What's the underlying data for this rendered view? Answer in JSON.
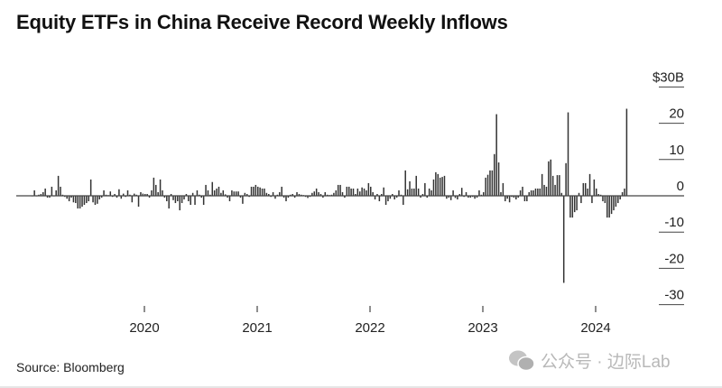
{
  "title": "Equity ETFs in China Receive Record Weekly Inflows",
  "source": "Source: Bloomberg",
  "watermark": "公众号 · 边际Lab",
  "chart_data": {
    "type": "bar",
    "title": "Equity ETFs in China Receive Record Weekly Inflows",
    "frequency": "weekly",
    "start_year": 2019,
    "unit": "$B",
    "ylim": [
      -30,
      30
    ],
    "y_axis_position": "right",
    "y_ticks": [
      30,
      20,
      10,
      0,
      -10,
      -20,
      -30
    ],
    "y_tick_labels": [
      "$30B",
      "20",
      "10",
      "0",
      "-10",
      "-20",
      "-30"
    ],
    "x_tick_labels": [
      "2020",
      "2021",
      "2022",
      "2023",
      "2024"
    ],
    "grid": false,
    "bar_color": "#333333",
    "values": [
      0,
      1.5,
      0,
      0.3,
      0.5,
      1,
      2,
      -0.5,
      -0.5,
      2.5,
      0,
      1.5,
      5.5,
      2.5,
      0.3,
      -0.3,
      -0.8,
      -1.5,
      -0.5,
      -1.8,
      -2,
      -3.5,
      -3.5,
      -3,
      -2.5,
      -2,
      -1.5,
      4.5,
      -1.8,
      -2.5,
      -2.2,
      -1,
      -0.5,
      1.5,
      0.3,
      0.2,
      1.2,
      -0.3,
      0.5,
      -0.5,
      1.8,
      -0.8,
      0.6,
      -0.3,
      1.5,
      0.3,
      -1.8,
      0.6,
      0.3,
      -3,
      1,
      0.6,
      0.5,
      0.5,
      -0.5,
      1.5,
      5,
      3,
      1,
      4.5,
      1.5,
      -0.5,
      -1.5,
      -3.5,
      0.5,
      -1.2,
      -2,
      -1.5,
      -4,
      -2,
      -1,
      0.5,
      -1.5,
      -2.5,
      0.8,
      -2.5,
      1.5,
      0.3,
      -0.5,
      -2.5,
      3,
      1.5,
      0.3,
      3.8,
      1.5,
      2,
      2.5,
      0.8,
      1.5,
      0.4,
      -0.5,
      -1.5,
      1.5,
      1.2,
      1.2,
      1.2,
      -0.5,
      -2.2,
      0.8,
      0.5,
      -0.3,
      2.5,
      2.5,
      3,
      2.5,
      2.3,
      2,
      2,
      0.8,
      0.5,
      -0.3,
      1,
      -0.8,
      0.3,
      1,
      2.5,
      -0.5,
      -1.5,
      -0.5,
      0.3,
      0.5,
      -0.5,
      1,
      0.5,
      0.3,
      0.2,
      -0.3,
      -0.6,
      -0.3,
      0.8,
      1.2,
      2,
      1,
      0.5,
      -0.5,
      1,
      0.3,
      0.2,
      0.3,
      0.8,
      1.5,
      3,
      3,
      1,
      -0.5,
      2.5,
      2.5,
      2,
      2,
      0.5,
      2,
      1.2,
      2.3,
      2,
      1.5,
      3.5,
      2.5,
      1,
      -1,
      0.5,
      -1.5,
      0.5,
      2.3,
      -2.5,
      -1.5,
      -0.8,
      0.5,
      -1,
      -0.5,
      1.5,
      0.3,
      -2.5,
      7,
      1.8,
      4,
      2,
      2,
      5.5,
      2,
      -0.5,
      0.5,
      3.5,
      -0.5,
      2,
      1.5,
      4.5,
      6.5,
      6,
      5,
      5.2,
      5.5,
      -0.8,
      -0.5,
      -1.2,
      1.5,
      -0.6,
      -1,
      0.5,
      2.2,
      -0.3,
      1,
      -0.5,
      -0.5,
      -0.3,
      -0.8,
      -0.5,
      1.5,
      0.3,
      1,
      5,
      5.8,
      7,
      7,
      11.5,
      22.5,
      9.2,
      1,
      3.5,
      -1.5,
      -0.8,
      -1.8,
      -0.3,
      -0.5,
      -1,
      -0.5,
      1.5,
      2.5,
      -1.5,
      -1.5,
      1,
      1.5,
      1.5,
      2,
      2,
      2,
      6,
      3,
      2.5,
      9.5,
      10,
      5.5,
      3,
      5.7,
      5.7,
      0.8,
      -24,
      9,
      23,
      -6,
      -6,
      -4.5,
      -4,
      0.8,
      -2,
      3.5,
      3.5,
      2,
      6,
      -2,
      4.5,
      2,
      0.5,
      0.3,
      -1.5,
      -2,
      -6,
      -6,
      -5,
      -4,
      -3,
      -2,
      -1,
      1,
      2,
      24
    ]
  }
}
